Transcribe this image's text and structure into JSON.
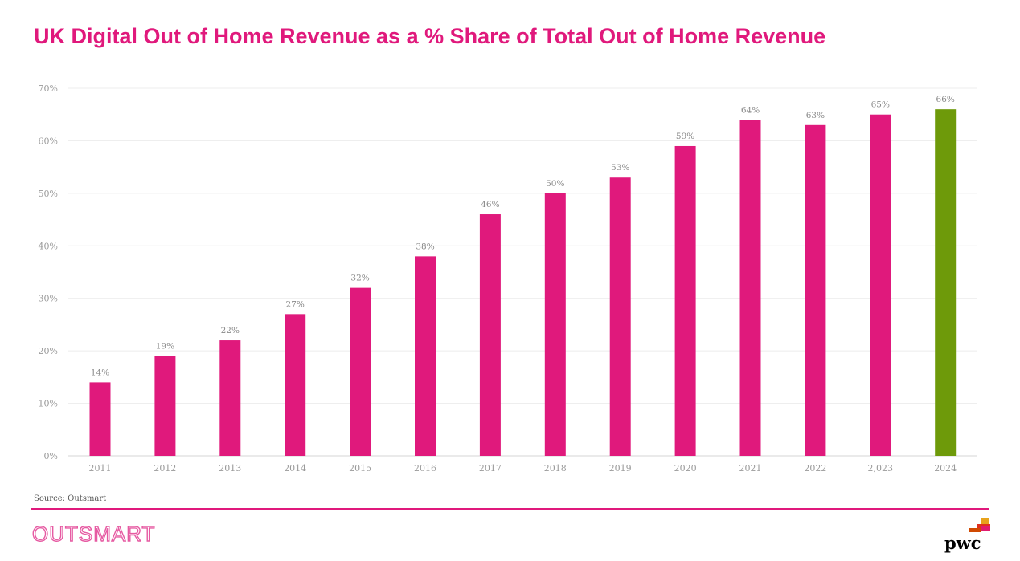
{
  "title": "UK Digital Out of Home Revenue as a % Share of Total Out of Home Revenue",
  "source": "Source: Outsmart",
  "logos": {
    "left": "OUTSMART",
    "right": "pwc"
  },
  "colors": {
    "accent": "#e0197c",
    "highlight": "#6e9a0a"
  },
  "chart_data": {
    "type": "bar",
    "categories": [
      "2011",
      "2012",
      "2013",
      "2014",
      "2015",
      "2016",
      "2017",
      "2018",
      "2019",
      "2020",
      "2021",
      "2022",
      "2,023",
      "2024"
    ],
    "values": [
      14,
      19,
      22,
      27,
      32,
      38,
      46,
      50,
      53,
      59,
      64,
      63,
      65,
      66
    ],
    "data_labels": [
      "14%",
      "19%",
      "22%",
      "27%",
      "32%",
      "38%",
      "46%",
      "50%",
      "53%",
      "59%",
      "64%",
      "63%",
      "65%",
      "66%"
    ],
    "ylim": [
      0,
      70
    ],
    "yticks": [
      "0%",
      "10%",
      "20%",
      "30%",
      "40%",
      "50%",
      "60%",
      "70%"
    ],
    "xlabel": "",
    "ylabel": "",
    "grid": true,
    "legend": "none",
    "highlight_category": "2024"
  }
}
